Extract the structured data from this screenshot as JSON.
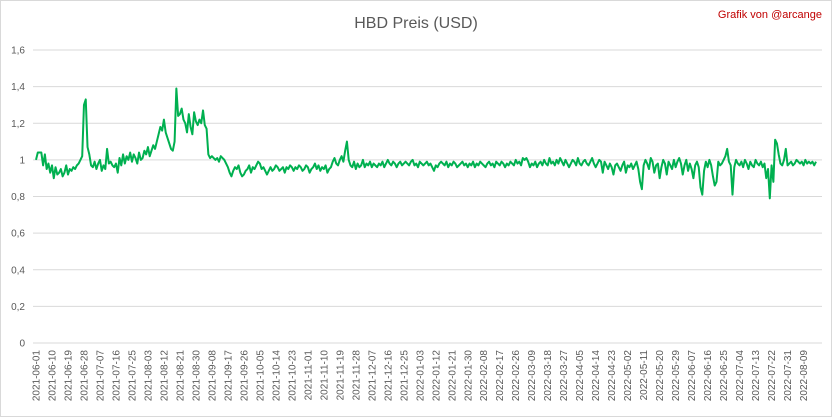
{
  "chart_data": {
    "type": "line",
    "title": "HBD Preis (USD)",
    "annotation": "Grafik von @arcange",
    "color": "#00b050",
    "grid": true,
    "ylim": [
      0,
      1.6
    ],
    "yticks": [
      0,
      {
        "value": 0.2,
        "label": "0,2"
      },
      {
        "value": 0.4,
        "label": "0,4"
      },
      {
        "value": 0.6,
        "label": "0,6"
      },
      {
        "value": 0.8,
        "label": "0,8"
      },
      1,
      {
        "value": 1.2,
        "label": "1,2"
      },
      {
        "value": 1.4,
        "label": "1,4"
      },
      {
        "value": 1.6,
        "label": "1,6"
      }
    ],
    "categories": [
      "2021-06-01",
      null,
      null,
      null,
      null,
      null,
      null,
      null,
      null,
      "2021-06-10",
      null,
      null,
      null,
      null,
      null,
      null,
      null,
      null,
      "2021-06-19",
      null,
      null,
      null,
      null,
      null,
      null,
      null,
      null,
      "2021-06-28",
      null,
      null,
      null,
      null,
      null,
      null,
      null,
      null,
      "2021-07-07",
      null,
      null,
      null,
      null,
      null,
      null,
      null,
      null,
      "2021-07-16",
      null,
      null,
      null,
      null,
      null,
      null,
      null,
      null,
      "2021-07-25",
      null,
      null,
      null,
      null,
      null,
      null,
      null,
      null,
      "2021-08-03",
      null,
      null,
      null,
      null,
      null,
      null,
      null,
      null,
      "2021-08-12",
      null,
      null,
      null,
      null,
      null,
      null,
      null,
      null,
      "2021-08-21",
      null,
      null,
      null,
      null,
      null,
      null,
      null,
      null,
      "2021-08-30",
      null,
      null,
      null,
      null,
      null,
      null,
      null,
      null,
      "2021-09-08",
      null,
      null,
      null,
      null,
      null,
      null,
      null,
      null,
      "2021-09-17",
      null,
      null,
      null,
      null,
      null,
      null,
      null,
      null,
      "2021-09-26",
      null,
      null,
      null,
      null,
      null,
      null,
      null,
      null,
      "2021-10-05",
      null,
      null,
      null,
      null,
      null,
      null,
      null,
      null,
      "2021-10-14",
      null,
      null,
      null,
      null,
      null,
      null,
      null,
      null,
      "2021-10-23",
      null,
      null,
      null,
      null,
      null,
      null,
      null,
      null,
      "2021-11-01",
      null,
      null,
      null,
      null,
      null,
      null,
      null,
      null,
      "2021-11-10",
      null,
      null,
      null,
      null,
      null,
      null,
      null,
      null,
      "2021-11-19",
      null,
      null,
      null,
      null,
      null,
      null,
      null,
      null,
      "2021-11-28",
      null,
      null,
      null,
      null,
      null,
      null,
      null,
      null,
      "2021-12-07",
      null,
      null,
      null,
      null,
      null,
      null,
      null,
      null,
      "2021-12-16",
      null,
      null,
      null,
      null,
      null,
      null,
      null,
      null,
      "2021-12-25",
      null,
      null,
      null,
      null,
      null,
      null,
      null,
      null,
      "2022-01-03",
      null,
      null,
      null,
      null,
      null,
      null,
      null,
      null,
      "2022-01-12",
      null,
      null,
      null,
      null,
      null,
      null,
      null,
      null,
      "2022-01-21",
      null,
      null,
      null,
      null,
      null,
      null,
      null,
      null,
      "2022-01-30",
      null,
      null,
      null,
      null,
      null,
      null,
      null,
      null,
      "2022-02-08",
      null,
      null,
      null,
      null,
      null,
      null,
      null,
      null,
      "2022-02-17",
      null,
      null,
      null,
      null,
      null,
      null,
      null,
      null,
      "2022-02-26",
      null,
      null,
      null,
      null,
      null,
      null,
      null,
      null,
      "2022-03-09",
      null,
      null,
      null,
      null,
      null,
      null,
      null,
      null,
      "2022-03-18",
      null,
      null,
      null,
      null,
      null,
      null,
      null,
      null,
      "2022-03-27",
      null,
      null,
      null,
      null,
      null,
      null,
      null,
      null,
      "2022-04-05",
      null,
      null,
      null,
      null,
      null,
      null,
      null,
      null,
      "2022-04-14",
      null,
      null,
      null,
      null,
      null,
      null,
      null,
      null,
      "2022-04-23",
      null,
      null,
      null,
      null,
      null,
      null,
      null,
      null,
      "2022-05-02",
      null,
      null,
      null,
      null,
      null,
      null,
      null,
      null,
      "2022-05-11",
      null,
      null,
      null,
      null,
      null,
      null,
      null,
      null,
      "2022-05-20",
      null,
      null,
      null,
      null,
      null,
      null,
      null,
      null,
      "2022-05-29",
      null,
      null,
      null,
      null,
      null,
      null,
      null,
      null,
      "2022-06-07",
      null,
      null,
      null,
      null,
      null,
      null,
      null,
      null,
      "2022-06-16",
      null,
      null,
      null,
      null,
      null,
      null,
      null,
      null,
      "2022-06-25",
      null,
      null,
      null,
      null,
      null,
      null,
      null,
      null,
      "2022-07-04",
      null,
      null,
      null,
      null,
      null,
      null,
      null,
      null,
      "2022-07-13",
      null,
      null,
      null,
      null,
      null,
      null,
      null,
      null,
      "2022-07-22",
      null,
      null,
      null,
      null,
      null,
      null,
      null,
      null,
      "2022-07-31",
      null,
      null,
      null,
      null,
      null,
      null,
      null,
      null,
      "2022-08-09",
      null,
      null,
      null,
      null,
      null,
      null,
      null
    ],
    "values": [
      1.0,
      1.04,
      1.04,
      1.04,
      0.97,
      1.03,
      0.95,
      0.98,
      0.93,
      0.97,
      0.9,
      0.96,
      0.92,
      0.93,
      0.95,
      0.91,
      0.93,
      0.97,
      0.92,
      0.95,
      0.94,
      0.96,
      0.95,
      0.97,
      0.98,
      1.0,
      1.02,
      1.3,
      1.33,
      1.07,
      1.03,
      0.97,
      0.96,
      0.99,
      0.95,
      0.98,
      1.0,
      0.94,
      0.97,
      0.95,
      1.06,
      0.98,
      0.99,
      0.97,
      0.96,
      0.98,
      0.93,
      1.01,
      0.97,
      1.03,
      0.98,
      1.02,
      1.0,
      1.04,
      0.99,
      1.03,
      1.01,
      0.98,
      1.04,
      1.0,
      1.01,
      1.05,
      1.03,
      1.07,
      1.02,
      1.05,
      1.08,
      1.06,
      1.1,
      1.14,
      1.18,
      1.16,
      1.22,
      1.15,
      1.12,
      1.09,
      1.06,
      1.05,
      1.1,
      1.39,
      1.24,
      1.25,
      1.28,
      1.22,
      1.2,
      1.15,
      1.25,
      1.18,
      1.14,
      1.26,
      1.21,
      1.19,
      1.22,
      1.2,
      1.27,
      1.19,
      1.17,
      1.03,
      1.01,
      1.02,
      1.01,
      1.0,
      1.01,
      0.99,
      1.02,
      1.01,
      1.0,
      0.98,
      0.96,
      0.93,
      0.91,
      0.94,
      0.96,
      0.95,
      0.97,
      0.93,
      0.91,
      0.92,
      0.94,
      0.95,
      0.97,
      0.93,
      0.96,
      0.95,
      0.97,
      0.99,
      0.98,
      0.95,
      0.96,
      0.94,
      0.92,
      0.94,
      0.96,
      0.94,
      0.95,
      0.97,
      0.96,
      0.94,
      0.95,
      0.96,
      0.93,
      0.96,
      0.95,
      0.97,
      0.96,
      0.94,
      0.96,
      0.95,
      0.97,
      0.96,
      0.94,
      0.95,
      0.97,
      0.96,
      0.93,
      0.95,
      0.96,
      0.98,
      0.95,
      0.97,
      0.94,
      0.96,
      0.95,
      0.97,
      0.93,
      0.95,
      0.96,
      0.99,
      1.01,
      0.98,
      0.97,
      1.0,
      1.02,
      0.99,
      1.05,
      1.1,
      1.0,
      0.97,
      0.96,
      0.99,
      0.95,
      0.98,
      0.96,
      0.97,
      1.0,
      0.96,
      0.98,
      0.97,
      0.99,
      0.96,
      0.98,
      0.97,
      0.96,
      0.98,
      0.97,
      0.99,
      0.96,
      0.98,
      1.0,
      0.98,
      0.97,
      0.99,
      0.98,
      0.96,
      0.98,
      0.99,
      0.97,
      0.98,
      0.99,
      0.98,
      0.97,
      0.99,
      1.0,
      0.97,
      0.98,
      0.96,
      0.99,
      0.98,
      0.97,
      0.98,
      0.99,
      0.97,
      0.98,
      0.96,
      0.94,
      0.97,
      0.96,
      0.98,
      0.99,
      0.98,
      0.97,
      0.99,
      0.96,
      0.98,
      0.97,
      0.99,
      0.98,
      0.96,
      0.97,
      0.98,
      0.99,
      0.97,
      0.98,
      0.96,
      0.98,
      0.97,
      0.99,
      0.96,
      0.98,
      0.97,
      0.99,
      0.98,
      0.97,
      0.96,
      0.98,
      0.99,
      0.97,
      0.98,
      0.96,
      0.99,
      0.98,
      0.97,
      0.99,
      0.98,
      0.96,
      0.98,
      0.97,
      0.99,
      0.98,
      0.97,
      1.0,
      0.98,
      0.99,
      0.97,
      1.01,
      1.0,
      1.01,
      0.99,
      0.96,
      0.98,
      0.97,
      0.99,
      0.96,
      0.98,
      0.99,
      0.97,
      1.0,
      0.98,
      0.97,
      1.01,
      0.98,
      0.99,
      0.97,
      1.0,
      0.98,
      1.01,
      0.99,
      0.97,
      1.0,
      0.98,
      0.96,
      0.98,
      1.0,
      0.99,
      0.97,
      1.01,
      0.98,
      0.97,
      0.99,
      1.0,
      0.98,
      0.97,
      0.99,
      1.01,
      0.98,
      0.96,
      0.98,
      1.0,
      0.99,
      0.93,
      0.99,
      0.97,
      0.95,
      0.98,
      0.96,
      0.92,
      0.97,
      0.98,
      0.96,
      0.94,
      0.97,
      0.99,
      0.93,
      0.97,
      0.96,
      0.98,
      0.95,
      0.97,
      0.99,
      0.95,
      0.88,
      0.84,
      0.97,
      1.0,
      0.98,
      0.95,
      1.01,
      0.99,
      0.93,
      0.97,
      0.98,
      0.9,
      0.96,
      1.0,
      0.98,
      0.92,
      0.99,
      0.97,
      0.95,
      1.0,
      0.96,
      0.99,
      1.01,
      0.98,
      0.92,
      0.97,
      1.0,
      0.94,
      0.98,
      0.95,
      0.9,
      0.97,
      0.99,
      0.96,
      0.85,
      0.81,
      0.94,
      0.99,
      0.96,
      1.0,
      0.97,
      0.91,
      0.86,
      0.88,
      0.99,
      0.97,
      0.98,
      1.0,
      1.02,
      1.06,
      0.99,
      0.97,
      0.81,
      0.96,
      1.0,
      0.98,
      0.97,
      0.99,
      0.96,
      1.0,
      0.98,
      0.95,
      0.99,
      0.97,
      0.96,
      1.0,
      0.98,
      0.97,
      0.99,
      0.96,
      0.98,
      0.9,
      0.95,
      0.79,
      0.97,
      0.88,
      1.11,
      1.09,
      1.03,
      0.98,
      0.97,
      1.0,
      1.06,
      0.97,
      0.98,
      0.99,
      0.97,
      0.98,
      1.0,
      0.99,
      0.98,
      0.99,
      0.97,
      1.0,
      0.98,
      0.99,
      0.98,
      0.99,
      0.97,
      0.99
    ]
  }
}
